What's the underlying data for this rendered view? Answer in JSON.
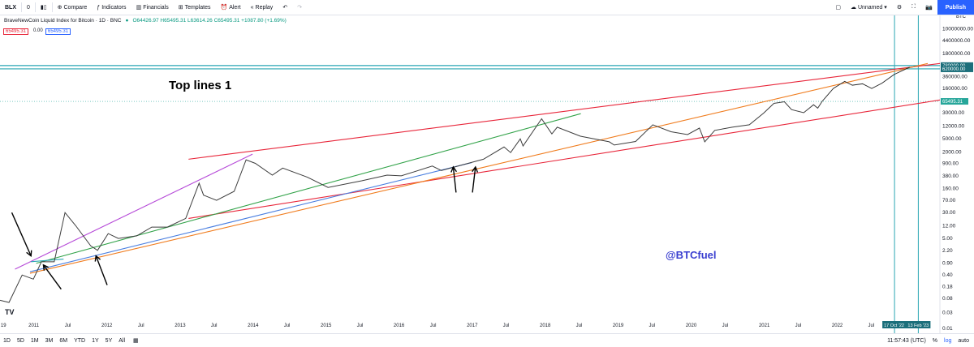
{
  "toolbar": {
    "symbol": "BLX",
    "interval": "1D",
    "compare": "Compare",
    "indicators": "Indicators",
    "financials": "Financials",
    "templates": "Templates",
    "alert": "Alert",
    "replay": "Replay",
    "layout_name": "Unnamed",
    "publish": "Publish",
    "zero": "0"
  },
  "legend": {
    "title": "BraveNewCoin Liquid Index for Bitcoin · 1D · BNC",
    "ohlc": "O64426.97 H65495.31 L63614.26 C65495.31 +1087.80 (+1.69%)",
    "tag_red": "65495.31",
    "tag_mid": "0.00",
    "tag_blue": "65495.31"
  },
  "bottom": {
    "ranges": [
      "1D",
      "5D",
      "1M",
      "3M",
      "6M",
      "YTD",
      "1Y",
      "5Y",
      "All"
    ],
    "time": "11:57:43 (UTC)",
    "pct": "%",
    "log": "log",
    "auto": "auto"
  },
  "colors": {
    "brand": "#2962ff",
    "red": "#e8263a",
    "green": "#33a34a",
    "orange": "#f07c1e",
    "blue": "#4a7fe0",
    "purple": "#b64ad8",
    "teal": "#2aa6b3",
    "price": "#3d3d3d"
  },
  "chart_data": {
    "type": "line",
    "scale": "log",
    "xlim": [
      "2010-07-18",
      "2023-06-01"
    ],
    "ylim": [
      0.01,
      25000000
    ],
    "grid": false,
    "annotations": {
      "headline": "Top lines 1",
      "handle": "@BTCfuel"
    },
    "axis_labels": {
      "y_unit": "BTC"
    },
    "x_ticks": [
      {
        "date": "2010-08-15",
        "label": "19"
      },
      {
        "date": "2011-01-01",
        "label": "2011"
      },
      {
        "date": "2011-07-01",
        "label": "Jul"
      },
      {
        "date": "2012-01-01",
        "label": "2012"
      },
      {
        "date": "2012-07-01",
        "label": "Jul"
      },
      {
        "date": "2013-01-01",
        "label": "2013"
      },
      {
        "date": "2013-07-01",
        "label": "Jul"
      },
      {
        "date": "2014-01-01",
        "label": "2014"
      },
      {
        "date": "2014-07-01",
        "label": "Jul"
      },
      {
        "date": "2015-01-01",
        "label": "2015"
      },
      {
        "date": "2015-07-01",
        "label": "Jul"
      },
      {
        "date": "2016-01-01",
        "label": "2016"
      },
      {
        "date": "2016-07-01",
        "label": "Jul"
      },
      {
        "date": "2017-01-01",
        "label": "2017"
      },
      {
        "date": "2017-07-01",
        "label": "Jul"
      },
      {
        "date": "2018-01-01",
        "label": "2018"
      },
      {
        "date": "2018-07-01",
        "label": "Jul"
      },
      {
        "date": "2019-01-01",
        "label": "2019"
      },
      {
        "date": "2019-07-01",
        "label": "Jul"
      },
      {
        "date": "2020-01-01",
        "label": "2020"
      },
      {
        "date": "2020-07-01",
        "label": "Jul"
      },
      {
        "date": "2021-01-01",
        "label": "2021"
      },
      {
        "date": "2021-07-01",
        "label": "Jul"
      },
      {
        "date": "2022-01-01",
        "label": "2022"
      },
      {
        "date": "2022-07-01",
        "label": "Jul"
      }
    ],
    "y_ticks": [
      {
        "v": 10000000,
        "label": "10000000.00"
      },
      {
        "v": 4400000,
        "label": "4400000.00"
      },
      {
        "v": 1800000,
        "label": "1800000.00"
      },
      {
        "v": 360000,
        "label": "360000.00"
      },
      {
        "v": 160000,
        "label": "160000.00"
      },
      {
        "v": 30000,
        "label": "30000.00"
      },
      {
        "v": 12000,
        "label": "12000.00"
      },
      {
        "v": 5000,
        "label": "5000.00"
      },
      {
        "v": 2000,
        "label": "2000.00"
      },
      {
        "v": 900,
        "label": "900.00"
      },
      {
        "v": 380,
        "label": "380.00"
      },
      {
        "v": 160,
        "label": "160.00"
      },
      {
        "v": 70,
        "label": "70.00"
      },
      {
        "v": 30,
        "label": "30.00"
      },
      {
        "v": 12,
        "label": "12.00"
      },
      {
        "v": 5,
        "label": "5.00"
      },
      {
        "v": 2.2,
        "label": "2.20"
      },
      {
        "v": 0.9,
        "label": "0.90"
      },
      {
        "v": 0.4,
        "label": "0.40"
      },
      {
        "v": 0.18,
        "label": "0.18"
      },
      {
        "v": 0.08,
        "label": "0.08"
      },
      {
        "v": 0.03,
        "label": "0.03"
      },
      {
        "v": 0.01,
        "label": "0.01"
      }
    ],
    "series": [
      {
        "values": [
          {
            "x": "2010-07-18",
            "y": 0.07
          },
          {
            "x": "2010-09-01",
            "y": 0.06
          },
          {
            "x": "2010-11-06",
            "y": 0.4
          },
          {
            "x": "2011-01-01",
            "y": 0.3
          },
          {
            "x": "2011-02-10",
            "y": 1.0
          },
          {
            "x": "2011-04-15",
            "y": 1.0
          },
          {
            "x": "2011-06-08",
            "y": 30
          },
          {
            "x": "2011-08-01",
            "y": 12
          },
          {
            "x": "2011-10-15",
            "y": 3
          },
          {
            "x": "2011-11-18",
            "y": 2.2
          },
          {
            "x": "2012-01-10",
            "y": 7
          },
          {
            "x": "2012-03-01",
            "y": 5
          },
          {
            "x": "2012-06-01",
            "y": 6
          },
          {
            "x": "2012-08-15",
            "y": 11
          },
          {
            "x": "2012-11-01",
            "y": 11
          },
          {
            "x": "2013-02-01",
            "y": 20
          },
          {
            "x": "2013-04-09",
            "y": 230
          },
          {
            "x": "2013-05-01",
            "y": 100
          },
          {
            "x": "2013-07-05",
            "y": 70
          },
          {
            "x": "2013-10-01",
            "y": 130
          },
          {
            "x": "2013-11-30",
            "y": 1150
          },
          {
            "x": "2014-01-15",
            "y": 900
          },
          {
            "x": "2014-04-10",
            "y": 400
          },
          {
            "x": "2014-06-01",
            "y": 650
          },
          {
            "x": "2014-10-01",
            "y": 350
          },
          {
            "x": "2015-01-14",
            "y": 170
          },
          {
            "x": "2015-07-01",
            "y": 270
          },
          {
            "x": "2015-11-05",
            "y": 400
          },
          {
            "x": "2016-01-15",
            "y": 380
          },
          {
            "x": "2016-06-18",
            "y": 750
          },
          {
            "x": "2016-08-02",
            "y": 550
          },
          {
            "x": "2016-12-31",
            "y": 960
          },
          {
            "x": "2017-03-01",
            "y": 1200
          },
          {
            "x": "2017-06-12",
            "y": 2800
          },
          {
            "x": "2017-07-15",
            "y": 1900
          },
          {
            "x": "2017-09-01",
            "y": 4900
          },
          {
            "x": "2017-09-15",
            "y": 3000
          },
          {
            "x": "2017-12-17",
            "y": 19700
          },
          {
            "x": "2018-02-06",
            "y": 6900
          },
          {
            "x": "2018-03-05",
            "y": 11000
          },
          {
            "x": "2018-06-29",
            "y": 5900
          },
          {
            "x": "2018-11-20",
            "y": 4000
          },
          {
            "x": "2018-12-15",
            "y": 3200
          },
          {
            "x": "2019-04-01",
            "y": 4100
          },
          {
            "x": "2019-06-26",
            "y": 13000
          },
          {
            "x": "2019-09-25",
            "y": 8000
          },
          {
            "x": "2019-12-17",
            "y": 6600
          },
          {
            "x": "2020-02-14",
            "y": 10300
          },
          {
            "x": "2020-03-12",
            "y": 4000
          },
          {
            "x": "2020-05-01",
            "y": 8800
          },
          {
            "x": "2020-07-27",
            "y": 11000
          },
          {
            "x": "2020-10-21",
            "y": 13000
          },
          {
            "x": "2020-12-31",
            "y": 29000
          },
          {
            "x": "2021-02-21",
            "y": 57000
          },
          {
            "x": "2021-04-14",
            "y": 64000
          },
          {
            "x": "2021-05-20",
            "y": 37000
          },
          {
            "x": "2021-07-20",
            "y": 30000
          },
          {
            "x": "2021-09-07",
            "y": 52000
          },
          {
            "x": "2021-09-28",
            "y": 41000
          },
          {
            "x": "2021-10-20",
            "y": 65495.31
          }
        ]
      }
    ],
    "price_line": {
      "value": 65495.31,
      "label": "65495.31"
    },
    "horizontal_levels": [
      {
        "value": 780000,
        "label": "780000.00"
      },
      {
        "value": 620000,
        "label": "620000.00"
      }
    ],
    "vertical_markers": [
      {
        "date": "2022-10-17",
        "label": "17 Oct '22"
      },
      {
        "date": "2023-02-13",
        "label": "13 Feb '23"
      }
    ],
    "trendlines": [
      {
        "name": "red-top",
        "color": "red",
        "p1": {
          "x": "2013-02-15",
          "y": 1200
        },
        "p2": {
          "x": "2023-06-01",
          "y": 900000
        }
      },
      {
        "name": "red-mid",
        "color": "red",
        "p1": {
          "x": "2013-02-15",
          "y": 20
        },
        "p2": {
          "x": "2023-06-01",
          "y": 72000
        }
      },
      {
        "name": "orange",
        "color": "orange",
        "p1": {
          "x": "2010-12-15",
          "y": 0.45
        },
        "p2": {
          "x": "2023-04-01",
          "y": 900000
        }
      },
      {
        "name": "blue",
        "color": "blue",
        "p1": {
          "x": "2010-12-15",
          "y": 0.5
        },
        "p2": {
          "x": "2017-01-01",
          "y": 950
        }
      },
      {
        "name": "green",
        "color": "green",
        "p1": {
          "x": "2011-01-15",
          "y": 0.9
        },
        "p2": {
          "x": "2018-07-01",
          "y": 28000
        }
      },
      {
        "name": "purple",
        "color": "purple",
        "p1": {
          "x": "2010-10-01",
          "y": 0.6
        },
        "p2": {
          "x": "2014-01-01",
          "y": 1700
        }
      },
      {
        "name": "teal-short",
        "color": "teal",
        "p1": {
          "x": "2010-12-20",
          "y": 1.0
        },
        "p2": {
          "x": "2011-06-01",
          "y": 1.2
        }
      }
    ],
    "projection": [
      {
        "x": "2021-10-20",
        "y": 65495.31
      },
      {
        "x": "2021-12-15",
        "y": 160000
      },
      {
        "x": "2022-02-10",
        "y": 260000
      },
      {
        "x": "2022-03-20",
        "y": 200000
      },
      {
        "x": "2022-05-10",
        "y": 220000
      },
      {
        "x": "2022-06-25",
        "y": 160000
      },
      {
        "x": "2022-08-15",
        "y": 230000
      },
      {
        "x": "2022-10-15",
        "y": 420000
      },
      {
        "x": "2023-01-01",
        "y": 700000
      }
    ],
    "arrows": [
      {
        "from": {
          "x": "2010-09-15",
          "y": 30
        },
        "to": {
          "x": "2010-12-20",
          "y": 1.5
        }
      },
      {
        "from": {
          "x": "2011-05-20",
          "y": 0.15
        },
        "to": {
          "x": "2011-02-20",
          "y": 0.8
        }
      },
      {
        "from": {
          "x": "2012-01-05",
          "y": 0.2
        },
        "to": {
          "x": "2011-11-10",
          "y": 1.5
        }
      },
      {
        "from": {
          "x": "2016-10-15",
          "y": 120
        },
        "to": {
          "x": "2016-10-01",
          "y": 700
        }
      },
      {
        "from": {
          "x": "2017-01-05",
          "y": 120
        },
        "to": {
          "x": "2017-01-20",
          "y": 700
        }
      }
    ]
  }
}
